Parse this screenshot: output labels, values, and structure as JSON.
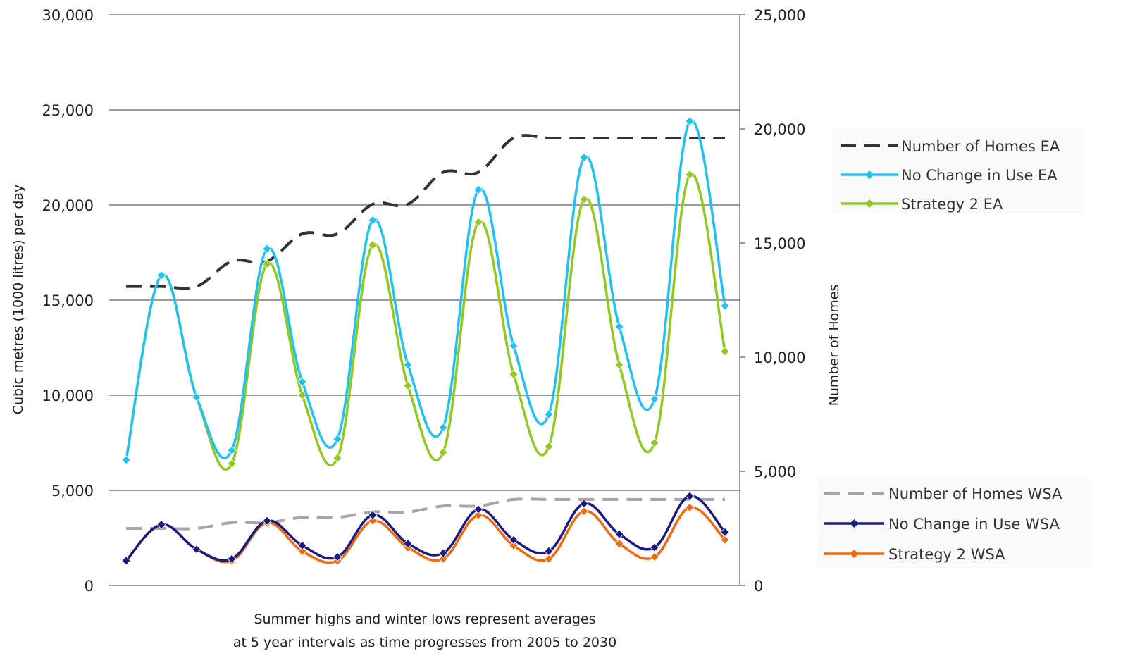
{
  "chart_data": {
    "type": "line",
    "caption_line1": "Summer highs and winter lows represent averages",
    "caption_line2": "at 5 year intervals as time progresses from 2005 to 2030",
    "ylabel_left": "Cubic metres (1000 litres) per day",
    "ylabel_right": "Number of Homes",
    "ylim_left": [
      0,
      30000
    ],
    "ylim_right": [
      0,
      25000
    ],
    "yticks_left": [
      "0",
      "5,000",
      "10,000",
      "15,000",
      "20,000",
      "25,000",
      "30,000"
    ],
    "yticks_right": [
      "0",
      "5,000",
      "10,000",
      "15,000",
      "20,000",
      "25,000"
    ],
    "grid": true,
    "legend_groups": [
      [
        "Number of Homes EA",
        "No Change in Use EA",
        "Strategy 2 EA"
      ],
      [
        "Number of Homes WSA",
        "No Change in Use WSA",
        "Strategy 2 WSA"
      ]
    ],
    "series": [
      {
        "name": "Number of Homes EA",
        "axis": "right",
        "style": "dashed",
        "color": "#333333",
        "x": [
          0,
          1,
          2,
          3,
          4,
          5,
          6,
          7,
          8,
          9,
          10,
          11,
          12,
          13,
          14,
          15,
          16,
          17
        ],
        "values": [
          13100,
          13100,
          13100,
          14200,
          14200,
          15400,
          15400,
          16700,
          16700,
          18100,
          18100,
          19600,
          19600,
          19600,
          19600,
          19600,
          19600,
          19600
        ]
      },
      {
        "name": "No Change in Use EA",
        "axis": "left",
        "style": "marker",
        "color": "#1ec3f0",
        "x": [
          0,
          1,
          2,
          3,
          4,
          5,
          6,
          7,
          8,
          9,
          10,
          11,
          12,
          13,
          14,
          15,
          16,
          17
        ],
        "values": [
          6600,
          16300,
          9900,
          7100,
          17700,
          10700,
          7700,
          19200,
          11600,
          8300,
          20800,
          12600,
          9000,
          22500,
          13600,
          9800,
          24400,
          14700
        ]
      },
      {
        "name": "Strategy 2 EA",
        "axis": "left",
        "style": "marker",
        "color": "#92c91f",
        "x": [
          0,
          1,
          2,
          3,
          4,
          5,
          6,
          7,
          8,
          9,
          10,
          11,
          12,
          13,
          14,
          15,
          16,
          17
        ],
        "values": [
          6600,
          16300,
          9900,
          6400,
          16900,
          10000,
          6700,
          17900,
          10500,
          7000,
          19100,
          11100,
          7300,
          20300,
          11600,
          7500,
          21600,
          12300
        ]
      },
      {
        "name": "Number of Homes WSA",
        "axis": "right",
        "style": "dashed",
        "color": "#a6a6a6",
        "x": [
          0,
          1,
          2,
          3,
          4,
          5,
          6,
          7,
          8,
          9,
          10,
          11,
          12,
          13,
          14,
          15,
          16,
          17
        ],
        "values": [
          2500,
          2500,
          2500,
          2750,
          2750,
          2980,
          2980,
          3220,
          3220,
          3480,
          3480,
          3770,
          3770,
          3770,
          3770,
          3770,
          3770,
          3770
        ]
      },
      {
        "name": "No Change in Use WSA",
        "axis": "left",
        "style": "marker",
        "color": "#1a1a80",
        "x": [
          0,
          1,
          2,
          3,
          4,
          5,
          6,
          7,
          8,
          9,
          10,
          11,
          12,
          13,
          14,
          15,
          16,
          17
        ],
        "values": [
          1300,
          3200,
          1900,
          1400,
          3400,
          2100,
          1500,
          3700,
          2200,
          1700,
          4000,
          2400,
          1800,
          4300,
          2700,
          2000,
          4700,
          2800
        ]
      },
      {
        "name": "Strategy 2 WSA",
        "axis": "left",
        "style": "marker",
        "color": "#f06a10",
        "x": [
          0,
          1,
          2,
          3,
          4,
          5,
          6,
          7,
          8,
          9,
          10,
          11,
          12,
          13,
          14,
          15,
          16,
          17
        ],
        "values": [
          1300,
          3200,
          1900,
          1300,
          3300,
          1800,
          1300,
          3400,
          2000,
          1400,
          3700,
          2100,
          1400,
          3900,
          2200,
          1500,
          4100,
          2400
        ]
      }
    ]
  }
}
